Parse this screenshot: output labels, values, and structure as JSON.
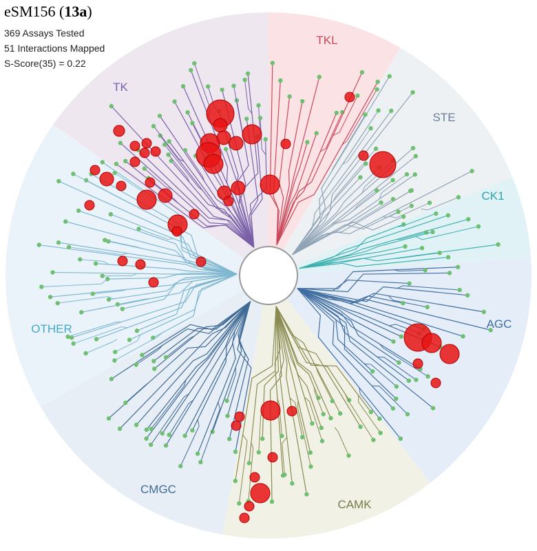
{
  "title": [
    "eSM156 (",
    "13a",
    ")"
  ],
  "stats": [
    "369 Assays Tested",
    "51 Interactions Mapped",
    "S-Score(35) = 0.22"
  ],
  "groups": [
    "TK",
    "TKL",
    "STE",
    "CK1",
    "AGC",
    "CAMK",
    "CMGC",
    "OTHER"
  ]
}
